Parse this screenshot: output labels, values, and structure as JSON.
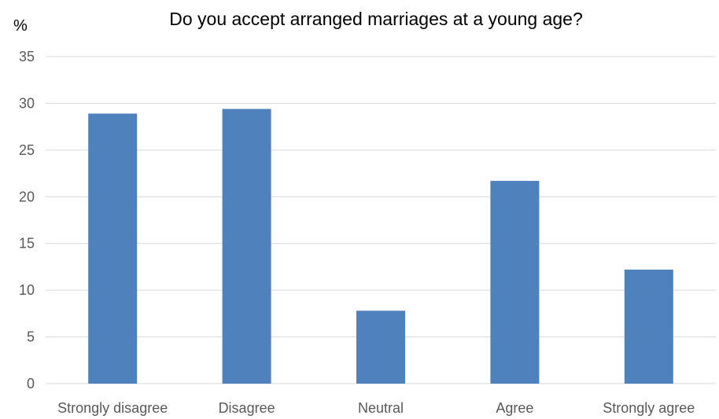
{
  "chart_data": {
    "type": "bar",
    "title": "Do you accept arranged marriages at a young age?",
    "xlabel": "",
    "ylabel": "%",
    "categories": [
      "Strongly disagree",
      "Disagree",
      "Neutral",
      "Agree",
      "Strongly agree"
    ],
    "values": [
      28.9,
      29.4,
      7.8,
      21.7,
      12.2
    ],
    "ylim": [
      0,
      35
    ],
    "yticks": [
      "0",
      "5",
      "10",
      "15",
      "20",
      "25",
      "30",
      "35"
    ],
    "ytick_values": [
      0,
      5,
      10,
      15,
      20,
      25,
      30,
      35
    ],
    "bar_color": "#4f81bd",
    "grid": true,
    "legend": "none"
  }
}
